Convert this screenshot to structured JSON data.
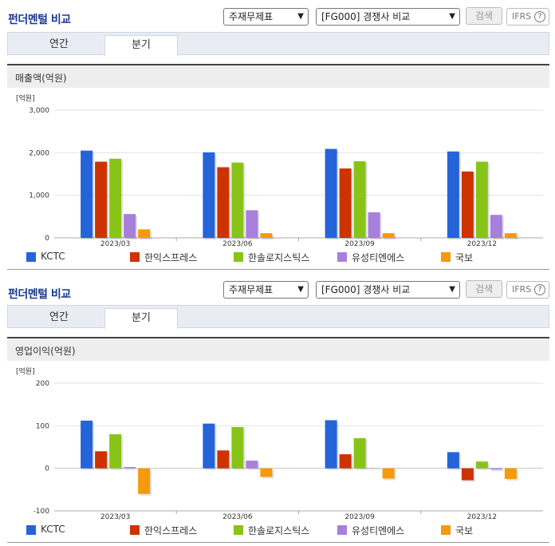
{
  "sections": [
    {
      "title": "펀더멘털 비교",
      "select_topic": "주재무제표",
      "select_compare": "[FG000] 경쟁사 비교",
      "search_label": "검색",
      "ifrs_label": "IFRS",
      "help_icon": "?",
      "tabs": [
        "연간",
        "분기"
      ],
      "active_tab": 1,
      "chart_title": "매출액(억원)"
    },
    {
      "title": "펀더멘털 비교",
      "select_topic": "주재무제표",
      "select_compare": "[FG000] 경쟁사 비교",
      "search_label": "검색",
      "ifrs_label": "IFRS",
      "help_icon": "?",
      "tabs": [
        "연간",
        "분기"
      ],
      "active_tab": 1,
      "chart_title": "영업이익(억원)"
    }
  ],
  "colors": {
    "KCTC": "#2563d9",
    "한익스프레스": "#cc3300",
    "한솔로지스틱스": "#88c418",
    "유성티엔에스": "#a77fdc",
    "국보": "#f59a0c"
  },
  "chart_data": [
    {
      "type": "bar",
      "title": "매출액(억원)",
      "unit_label": "[억원]",
      "categories": [
        "2023/03",
        "2023/06",
        "2023/09",
        "2023/12"
      ],
      "yticks": [
        "3,000",
        "2,000",
        "1,000",
        "0"
      ],
      "ylim": [
        0,
        3000
      ],
      "series": [
        {
          "name": "KCTC",
          "values": [
            2050,
            2010,
            2090,
            2030
          ]
        },
        {
          "name": "한익스프레스",
          "values": [
            1790,
            1660,
            1630,
            1560
          ]
        },
        {
          "name": "한솔로지스틱스",
          "values": [
            1860,
            1770,
            1800,
            1790
          ]
        },
        {
          "name": "유성티엔에스",
          "values": [
            560,
            650,
            600,
            540
          ]
        },
        {
          "name": "국보",
          "values": [
            200,
            110,
            110,
            110
          ]
        }
      ]
    },
    {
      "type": "bar",
      "title": "영업이익(억원)",
      "unit_label": "[억원]",
      "categories": [
        "2023/03",
        "2023/06",
        "2023/09",
        "2023/12"
      ],
      "yticks": [
        "200",
        "100",
        "0",
        "-100"
      ],
      "ylim": [
        -100,
        200
      ],
      "series": [
        {
          "name": "KCTC",
          "values": [
            112,
            105,
            113,
            38
          ]
        },
        {
          "name": "한익스프레스",
          "values": [
            40,
            42,
            33,
            -28
          ]
        },
        {
          "name": "한솔로지스틱스",
          "values": [
            80,
            97,
            71,
            16
          ]
        },
        {
          "name": "유성티엔에스",
          "values": [
            3,
            18,
            0,
            -3
          ]
        },
        {
          "name": "국보",
          "values": [
            -60,
            -20,
            -24,
            -25
          ]
        }
      ]
    }
  ]
}
